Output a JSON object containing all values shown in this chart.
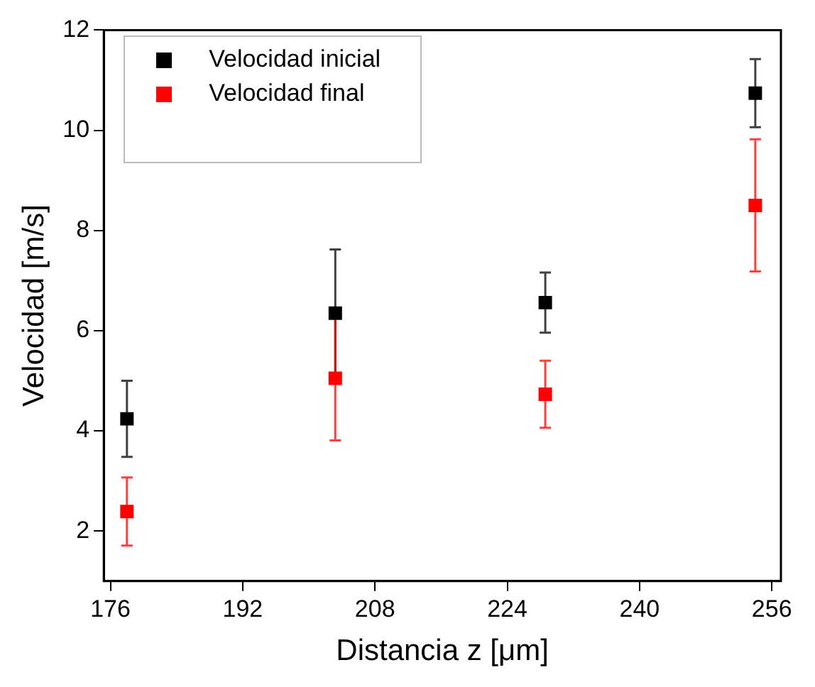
{
  "chart_data": {
    "type": "scatter",
    "xlabel": "Distancia z [μm]",
    "ylabel": "Velocidad [m/s]",
    "x": [
      178,
      203.2,
      228.6,
      254
    ],
    "series": [
      {
        "name": "Velocidad inicial",
        "color": "#000000",
        "values": [
          4.24,
          6.35,
          6.56,
          10.74
        ],
        "errors": [
          0.76,
          1.27,
          0.6,
          0.68
        ]
      },
      {
        "name": "Velocidad final",
        "color": "#ff0000",
        "values": [
          2.39,
          5.05,
          4.73,
          8.5
        ],
        "errors": [
          0.68,
          1.24,
          0.67,
          1.32
        ]
      }
    ],
    "xlim": [
      175.2,
      257.1
    ],
    "xticks": [
      176,
      192,
      208,
      224,
      240,
      256
    ],
    "ylim": [
      1,
      12
    ],
    "yticks": [
      2,
      4,
      6,
      8,
      10,
      12
    ],
    "grid": false,
    "legend": "top left",
    "marker": "square"
  }
}
